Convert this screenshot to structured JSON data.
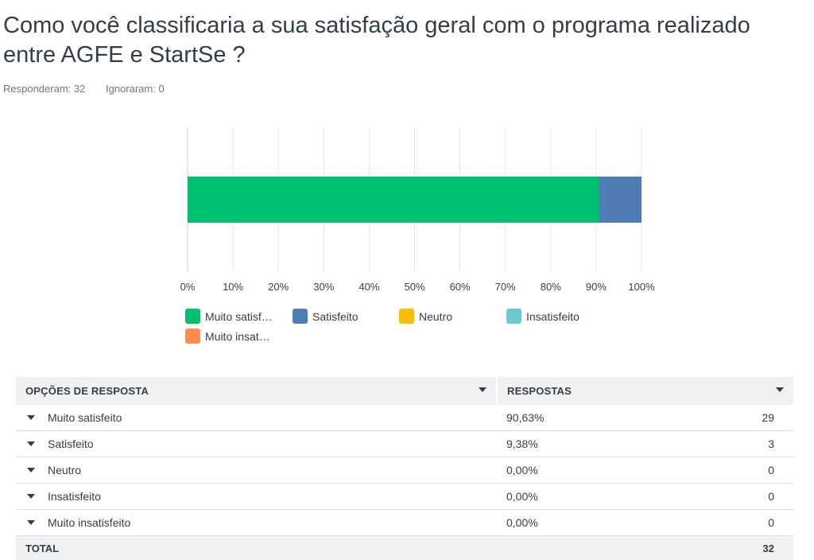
{
  "question": {
    "title": "Como você classificaria a sua satisfação geral com o programa realizado entre AGFE e StartSe ?",
    "answered_label": "Responderam: 32",
    "skipped_label": "Ignoraram: 0"
  },
  "colors": {
    "muito_satisfeito": "#00bf6f",
    "satisfeito": "#507cb6",
    "neutro": "#f9be00",
    "insatisfeito": "#6bc8cd",
    "muito_insatisfeito": "#ff8b4f"
  },
  "chart_data": {
    "type": "bar",
    "orientation": "horizontal-stacked",
    "categories": [
      ""
    ],
    "series": [
      {
        "name": "Muito satisf…",
        "values": [
          90.63
        ],
        "color": "#00bf6f"
      },
      {
        "name": "Satisfeito",
        "values": [
          9.38
        ],
        "color": "#507cb6"
      },
      {
        "name": "Neutro",
        "values": [
          0
        ],
        "color": "#f9be00"
      },
      {
        "name": "Insatisfeito",
        "values": [
          0
        ],
        "color": "#6bc8cd"
      },
      {
        "name": "Muito insat…",
        "values": [
          0
        ],
        "color": "#ff8b4f"
      }
    ],
    "xlim": [
      0,
      100
    ],
    "x_ticks": [
      "0%",
      "10%",
      "20%",
      "30%",
      "40%",
      "50%",
      "60%",
      "70%",
      "80%",
      "90%",
      "100%"
    ],
    "grid": true,
    "legend_position": "bottom"
  },
  "table": {
    "headers": {
      "options": "OPÇÕES DE RESPOSTA",
      "responses": "RESPOSTAS"
    },
    "rows": [
      {
        "label": "Muito satisfeito",
        "percent": "90,63%",
        "count": "29"
      },
      {
        "label": "Satisfeito",
        "percent": "9,38%",
        "count": "3"
      },
      {
        "label": "Neutro",
        "percent": "0,00%",
        "count": "0"
      },
      {
        "label": "Insatisfeito",
        "percent": "0,00%",
        "count": "0"
      },
      {
        "label": "Muito insatisfeito",
        "percent": "0,00%",
        "count": "0"
      }
    ],
    "total": {
      "label": "TOTAL",
      "count": "32"
    }
  }
}
